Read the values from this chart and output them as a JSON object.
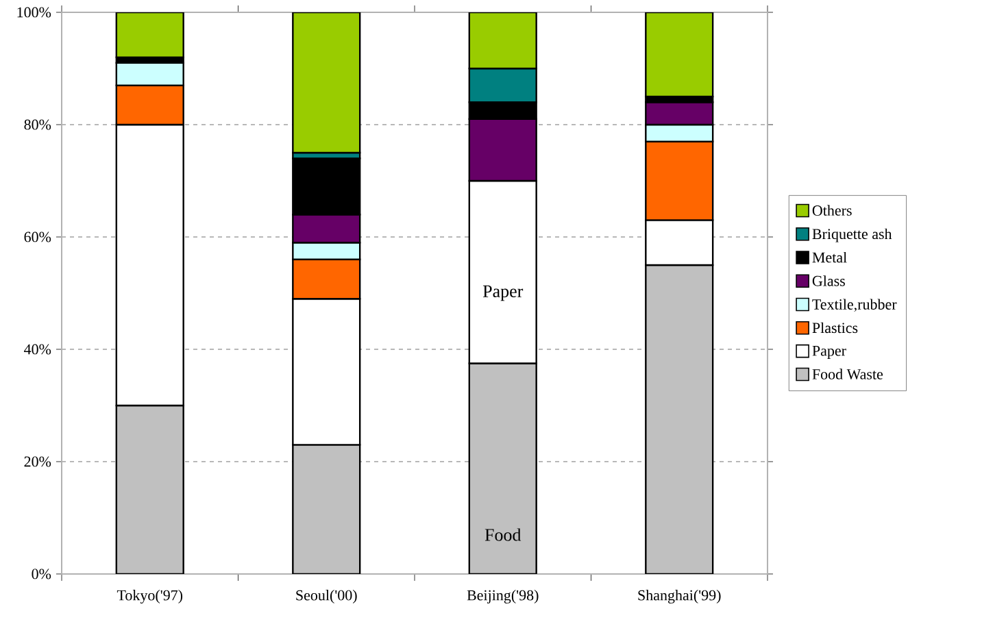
{
  "chart_data": {
    "type": "bar",
    "stacked": true,
    "categories": [
      "Tokyo('97)",
      "Seoul('00)",
      "Beijing('98)",
      "Shanghai('99)"
    ],
    "series": [
      {
        "name": "Food Waste",
        "color": "#c0c0c0",
        "values": [
          30,
          23,
          37.5,
          55
        ]
      },
      {
        "name": "Paper",
        "color": "#ffffff",
        "values": [
          50,
          26,
          32.5,
          8
        ]
      },
      {
        "name": "Plastics",
        "color": "#ff6600",
        "values": [
          7,
          7,
          0,
          14
        ]
      },
      {
        "name": "Textile,rubber",
        "color": "#ccffff",
        "values": [
          4,
          3,
          0,
          3
        ]
      },
      {
        "name": "Glass",
        "color": "#660066",
        "values": [
          0,
          5,
          11,
          4
        ]
      },
      {
        "name": "Metal",
        "color": "#000000",
        "values": [
          1,
          10,
          3,
          1
        ]
      },
      {
        "name": "Briquette ash",
        "color": "#008080",
        "values": [
          0,
          1,
          6,
          0
        ]
      },
      {
        "name": "Others",
        "color": "#99cc00",
        "values": [
          8,
          25,
          10,
          15
        ]
      }
    ],
    "ylim": [
      0,
      100
    ],
    "yticks": [
      {
        "value": 0,
        "label": "0%"
      },
      {
        "value": 20,
        "label": "20%"
      },
      {
        "value": 40,
        "label": "40%"
      },
      {
        "value": 60,
        "label": "60%"
      },
      {
        "value": 80,
        "label": "80%"
      },
      {
        "value": 100,
        "label": "100%"
      }
    ],
    "grid": "y",
    "legend": "right",
    "annotations": [
      "Paper",
      "Food"
    ]
  }
}
